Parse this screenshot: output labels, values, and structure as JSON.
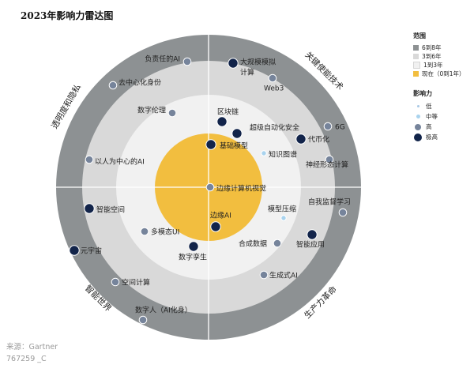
{
  "title": "2023年影响力雷达图",
  "colors": {
    "ring_outer": "#8d9193",
    "ring_mid": "#d9d9d9",
    "ring_inner": "#f1f1f1",
    "core": "#f2be3f",
    "impact_low": "#a8c9e5",
    "impact_mid": "#a9d3ee",
    "impact_high": "#76849b",
    "impact_very_high": "#12244a"
  },
  "legend": {
    "range_title": "范围",
    "range_items": [
      {
        "label": "6到8年",
        "color": "#8d9193"
      },
      {
        "label": "3到6年",
        "color": "#d9d9d9"
      },
      {
        "label": "1到3年",
        "color": "#f1f1f1"
      },
      {
        "label": "现在（0到1年）",
        "color": "#f2be3f"
      }
    ],
    "impact_title": "影响力",
    "impact_items": [
      {
        "label": "低",
        "level": "low"
      },
      {
        "label": "中等",
        "level": "mid"
      },
      {
        "label": "高",
        "level": "high"
      },
      {
        "label": "极高",
        "level": "very_high"
      }
    ]
  },
  "source": [
    "来源：Gartner",
    "767259 _C"
  ],
  "chart_data": {
    "type": "radar",
    "title": "2023年影响力雷达图",
    "rings": [
      "现在（0到1年）",
      "1到3年",
      "3到6年",
      "6到8年"
    ],
    "quadrants": [
      "透明度和隐私",
      "关键使能技术",
      "生产力革命",
      "智能世界"
    ],
    "technologies": [
      {
        "name": "负责任的AI",
        "quadrant": "透明度和隐私",
        "ring": "6到8年",
        "impact": "high"
      },
      {
        "name": "去中心化身份",
        "quadrant": "透明度和隐私",
        "ring": "6到8年",
        "impact": "high"
      },
      {
        "name": "数字伦理",
        "quadrant": "透明度和隐私",
        "ring": "3到6年",
        "impact": "high"
      },
      {
        "name": "以人为中心的AI",
        "quadrant": "透明度和隐私",
        "ring": "6到8年",
        "impact": "high"
      },
      {
        "name": "大规模模拟计算",
        "quadrant": "关键使能技术",
        "ring": "6到8年",
        "impact": "very_high"
      },
      {
        "name": "Web3",
        "quadrant": "关键使能技术",
        "ring": "6到8年",
        "impact": "high"
      },
      {
        "name": "区块链",
        "quadrant": "关键使能技术",
        "ring": "3到6年",
        "impact": "very_high"
      },
      {
        "name": "超级自动化安全",
        "quadrant": "关键使能技术",
        "ring": "1到3年",
        "impact": "very_high"
      },
      {
        "name": "基础模型",
        "quadrant": "关键使能技术",
        "ring": "现在（0到1年）",
        "impact": "very_high"
      },
      {
        "name": "6G",
        "quadrant": "关键使能技术",
        "ring": "6到8年",
        "impact": "high"
      },
      {
        "name": "知识图谱",
        "quadrant": "关键使能技术",
        "ring": "1到3年",
        "impact": "mid"
      },
      {
        "name": "代币化",
        "quadrant": "关键使能技术",
        "ring": "3到6年",
        "impact": "very_high"
      },
      {
        "name": "神经形态计算",
        "quadrant": "关键使能技术",
        "ring": "6到8年",
        "impact": "high"
      },
      {
        "name": "边缘计算机视觉",
        "quadrant": "关键使能技术",
        "ring": "现在（0到1年）",
        "impact": "high"
      },
      {
        "name": "自我监督学习",
        "quadrant": "生产力革命",
        "ring": "6到8年",
        "impact": "high"
      },
      {
        "name": "模型压缩",
        "quadrant": "生产力革命",
        "ring": "1到3年",
        "impact": "mid"
      },
      {
        "name": "边缘AI",
        "quadrant": "生产力革命",
        "ring": "现在（0到1年）",
        "impact": "very_high"
      },
      {
        "name": "智能应用",
        "quadrant": "生产力革命",
        "ring": "3到6年",
        "impact": "very_high"
      },
      {
        "name": "合成数据",
        "quadrant": "生产力革命",
        "ring": "1到3年",
        "impact": "high"
      },
      {
        "name": "生成式AI",
        "quadrant": "生产力革命",
        "ring": "3到6年",
        "impact": "high"
      },
      {
        "name": "智能空间",
        "quadrant": "智能世界",
        "ring": "3到6年",
        "impact": "very_high"
      },
      {
        "name": "多模态UI",
        "quadrant": "智能世界",
        "ring": "1到3年",
        "impact": "high"
      },
      {
        "name": "数字孪生",
        "quadrant": "智能世界",
        "ring": "1到3年",
        "impact": "very_high"
      },
      {
        "name": "元宇宙",
        "quadrant": "智能世界",
        "ring": "6到8年",
        "impact": "very_high"
      },
      {
        "name": "空间计算",
        "quadrant": "智能世界",
        "ring": "6到8年",
        "impact": "high"
      },
      {
        "name": "数字人（AI化身）",
        "quadrant": "智能世界",
        "ring": "6到8年",
        "impact": "high"
      }
    ]
  }
}
